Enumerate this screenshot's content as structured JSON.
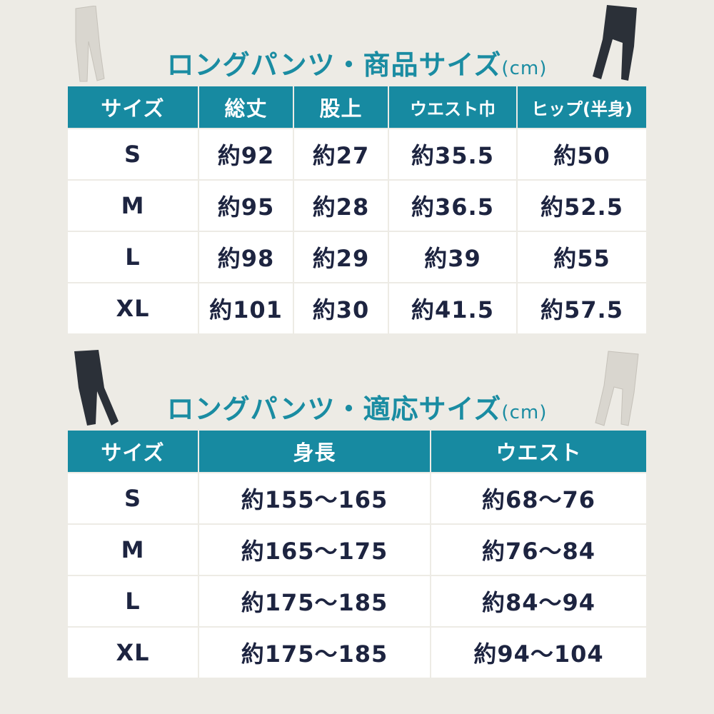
{
  "product_size": {
    "title": "ロングパンツ・商品サイズ",
    "unit": "(cm)",
    "headers": [
      "サイズ",
      "総丈",
      "股上",
      "ウエスト巾",
      "ヒップ(半身)"
    ],
    "rows": [
      [
        "S",
        "約92",
        "約27",
        "約35.5",
        "約50"
      ],
      [
        "M",
        "約95",
        "約28",
        "約36.5",
        "約52.5"
      ],
      [
        "L",
        "約98",
        "約29",
        "約39",
        "約55"
      ],
      [
        "XL",
        "約101",
        "約30",
        "約41.5",
        "約57.5"
      ]
    ]
  },
  "fit_size": {
    "title": "ロングパンツ・適応サイズ",
    "unit": "(cm)",
    "headers": [
      "サイズ",
      "身長",
      "ウエスト"
    ],
    "rows": [
      [
        "S",
        "約155〜165",
        "約68〜76"
      ],
      [
        "M",
        "約165〜175",
        "約76〜84"
      ],
      [
        "L",
        "約175〜185",
        "約84〜94"
      ],
      [
        "XL",
        "約175〜185",
        "約94〜104"
      ]
    ]
  },
  "colors": {
    "accent": "#178aa1",
    "title": "#1a8ca2",
    "text": "#1d2440",
    "background": "#edebe5",
    "pants_light": "#d9d6cf",
    "pants_dark": "#2b3038"
  },
  "icons": [
    "pants-light-icon",
    "pants-dark-icon"
  ]
}
